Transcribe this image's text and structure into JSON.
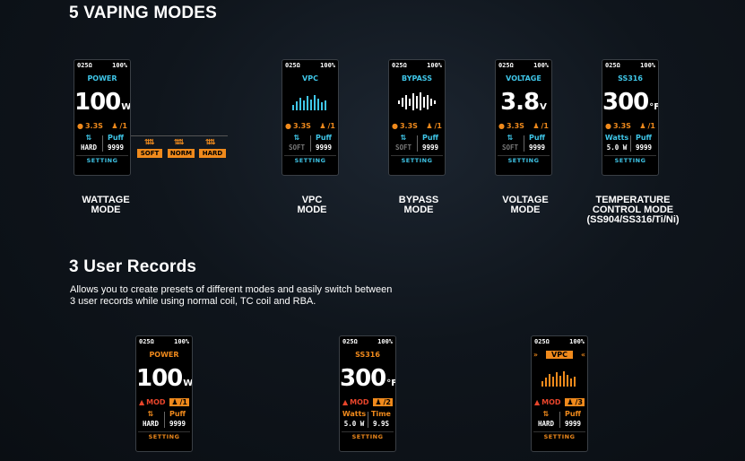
{
  "sections": {
    "modes_title": "5 VAPING MODES",
    "records_title": "3 User Records",
    "records_desc_line1": "Allows you to create presets of different modes and easily switch between",
    "records_desc_line2": "3 user records while using normal coil, TC coil and RBA."
  },
  "status": {
    "resistance": "025Ω",
    "battery": "100%"
  },
  "modes": [
    {
      "label": "POWER",
      "value": "100",
      "unit": "W",
      "time": "3.3S",
      "user": "/1",
      "left_title": "HARD",
      "right_title": "Puff",
      "right_value": "9999",
      "caption1": "WATTAGE",
      "caption2": "MODE",
      "caption3": ""
    },
    {
      "label": "VPC",
      "time": "3.3S",
      "user": "/1",
      "left_title": "SOFT",
      "right_title": "Puff",
      "right_value": "9999",
      "caption1": "VPC",
      "caption2": "MODE",
      "caption3": ""
    },
    {
      "label": "BYPASS",
      "time": "3.3S",
      "user": "/1",
      "left_title": "SOFT",
      "right_title": "Puff",
      "right_value": "9999",
      "caption1": "BYPASS",
      "caption2": "MODE",
      "caption3": ""
    },
    {
      "label": "VOLTAGE",
      "value": "3.8",
      "unit": "V",
      "time": "3.3S",
      "user": "/1",
      "left_title": "SOFT",
      "right_title": "Puff",
      "right_value": "9999",
      "caption1": "VOLTAGE",
      "caption2": "MODE",
      "caption3": ""
    },
    {
      "label": "SS316",
      "value": "300",
      "unit": "°F",
      "time": "3.3S",
      "user": "/1",
      "left_title": "Watts",
      "left_value": "5.0 W",
      "right_title": "Puff",
      "right_value": "9999",
      "caption1": "TEMPERATURE",
      "caption2": "CONTROL MODE",
      "caption3": "(SS904/SS316/Ti/Ni)"
    }
  ],
  "power_options": [
    "SOFT",
    "NORM",
    "HARD"
  ],
  "setting_label": "SETTING",
  "records": [
    {
      "label": "POWER",
      "value": "100",
      "unit": "W",
      "mod": "MOD",
      "user": "/1",
      "left_title": "HARD",
      "right_title": "Puff",
      "right_value": "9999"
    },
    {
      "label": "SS316",
      "value": "300",
      "unit": "°F",
      "mod": "MOD",
      "user": "/2",
      "left_title": "Watts",
      "left_value": "5.0 W",
      "right_title": "Time",
      "right_value": "9.9S"
    },
    {
      "label": "VPC",
      "mod": "MOD",
      "user": "/3",
      "left_title": "HARD",
      "right_title": "Puff",
      "right_value": "9999"
    }
  ],
  "colors": {
    "cyan": "#3fc6e8",
    "orange": "#f08a1c",
    "red": "#e8452b"
  }
}
